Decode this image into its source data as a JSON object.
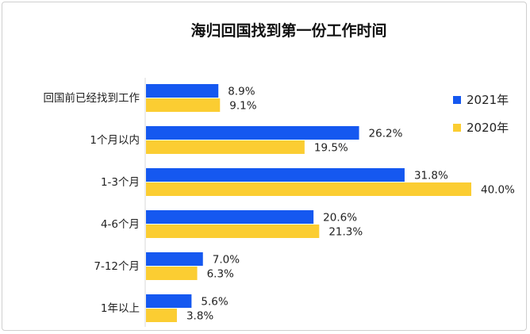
{
  "chart_data": {
    "type": "bar",
    "orientation": "horizontal",
    "title": "海归回国找到第一份工作时间",
    "categories": [
      "回国前已经找到工作",
      "1个月以内",
      "1-3个月",
      "4-6个月",
      "7-12个月",
      "1年以上"
    ],
    "series": [
      {
        "name": "2021年",
        "color": "#1558f0",
        "values": [
          8.9,
          26.2,
          31.8,
          20.6,
          7.0,
          5.6
        ],
        "labels": [
          "8.9%",
          "26.2%",
          "31.8%",
          "20.6%",
          "7.0%",
          "5.6%"
        ]
      },
      {
        "name": "2020年",
        "color": "#fbcd32",
        "values": [
          9.1,
          19.5,
          40.0,
          21.3,
          6.3,
          3.8
        ],
        "labels": [
          "9.1%",
          "19.5%",
          "40.0%",
          "21.3%",
          "6.3%",
          "3.8%"
        ]
      }
    ],
    "xlim": [
      0,
      40
    ],
    "grid": false,
    "legend_position": "right"
  }
}
